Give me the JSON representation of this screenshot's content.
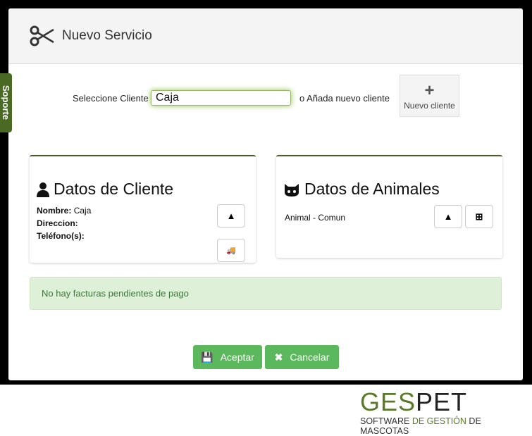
{
  "modal": {
    "title": "Nuevo Servicio",
    "icon": "scissors-icon"
  },
  "soporte": "Soporte",
  "client": {
    "select_label": "Seleccione Cliente",
    "value": "Caja",
    "or_label": "o Añada nuevo cliente",
    "new_button": "Nuevo cliente"
  },
  "cliente_panel": {
    "title": "Datos de Cliente",
    "nombre_label": "Nombre:",
    "nombre_value": "Caja",
    "direccion_label": "Direccion:",
    "telefono_label": "Teléfono(s):"
  },
  "animales_panel": {
    "title": "Datos de Animales",
    "animal": "Animal - Comun"
  },
  "alert": "No hay facturas pendientes de pago",
  "buttons": {
    "accept": "Aceptar",
    "cancel": "Cancelar"
  },
  "logo": {
    "ges": "GES",
    "pet": "PET",
    "tagline_a": "SOFTWARE ",
    "tagline_b": "DE GESTIÓN ",
    "tagline_c": "DE MASCOTAS"
  },
  "colors": {
    "accent": "#5cb85c",
    "brand": "#4a6a24",
    "alert_bg": "#dff0d8"
  }
}
